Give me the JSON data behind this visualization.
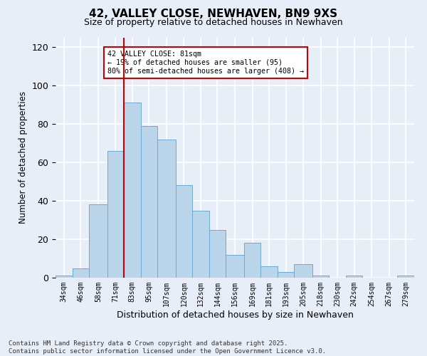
{
  "title": "42, VALLEY CLOSE, NEWHAVEN, BN9 9XS",
  "subtitle": "Size of property relative to detached houses in Newhaven",
  "xlabel": "Distribution of detached houses by size in Newhaven",
  "ylabel": "Number of detached properties",
  "bin_labels": [
    "34sqm",
    "46sqm",
    "58sqm",
    "71sqm",
    "83sqm",
    "95sqm",
    "107sqm",
    "120sqm",
    "132sqm",
    "144sqm",
    "156sqm",
    "169sqm",
    "181sqm",
    "193sqm",
    "205sqm",
    "218sqm",
    "230sqm",
    "242sqm",
    "254sqm",
    "267sqm",
    "279sqm"
  ],
  "bin_edges": [
    34,
    46,
    58,
    71,
    83,
    95,
    107,
    120,
    132,
    144,
    156,
    169,
    181,
    193,
    205,
    218,
    230,
    242,
    254,
    267,
    279,
    291
  ],
  "counts": [
    1,
    5,
    38,
    66,
    91,
    79,
    72,
    48,
    35,
    25,
    12,
    18,
    6,
    3,
    7,
    1,
    0,
    1,
    0,
    0,
    1
  ],
  "bar_color": "#bad4ea",
  "bar_edge_color": "#6aaad4",
  "vline_x": 83,
  "vline_color": "#cc0000",
  "annotation_text": "42 VALLEY CLOSE: 81sqm\n← 19% of detached houses are smaller (95)\n80% of semi-detached houses are larger (408) →",
  "annotation_box_color": "white",
  "annotation_box_edge_color": "#cc0000",
  "ylim": [
    0,
    125
  ],
  "yticks": [
    0,
    20,
    40,
    60,
    80,
    100,
    120
  ],
  "bg_color": "#e8eef8",
  "grid_color": "white",
  "footnote": "Contains HM Land Registry data © Crown copyright and database right 2025.\nContains public sector information licensed under the Open Government Licence v3.0."
}
